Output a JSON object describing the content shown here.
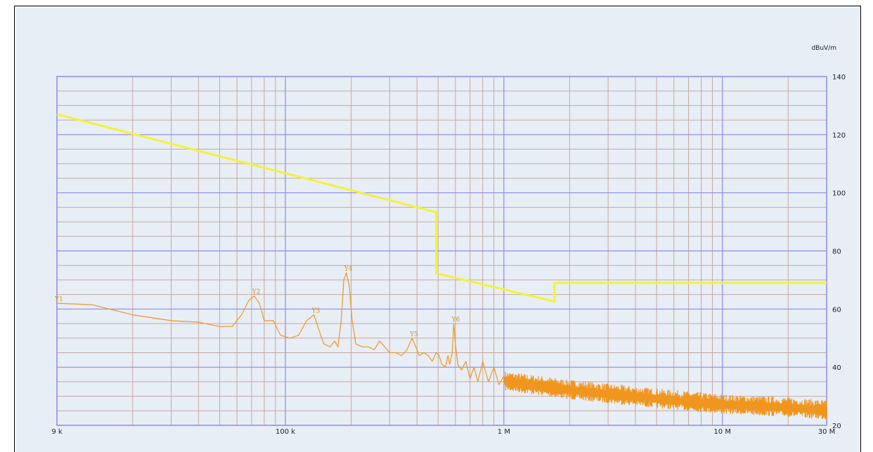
{
  "chart_data": {
    "type": "line",
    "title": "",
    "xlabel": "",
    "ylabel": "dBuV/m",
    "x_scale": "log",
    "xlim": [
      9000,
      30000000
    ],
    "ylim": [
      20,
      140
    ],
    "grid": true,
    "legend": "none",
    "x_ticks": [
      {
        "value": 9000,
        "label": "9 k"
      },
      {
        "value": 100000,
        "label": "100 k"
      },
      {
        "value": 1000000,
        "label": "1 M"
      },
      {
        "value": 10000000,
        "label": "10 M"
      },
      {
        "value": 30000000,
        "label": "30 M"
      }
    ],
    "y_ticks": [
      20,
      40,
      60,
      80,
      100,
      120,
      140
    ],
    "colors": {
      "background": "#e8eef6",
      "major_grid": "#8a8ae8",
      "minor_grid": "#c4a8a0",
      "limit_line": "#f2f23a",
      "measurement": "#f0961e",
      "marker": "#d88a1a"
    },
    "series": [
      {
        "role": "limit",
        "color": "#f2f23a",
        "points": [
          [
            9000,
            127
          ],
          [
            490000,
            93.3
          ],
          [
            490000,
            72.3
          ],
          [
            1705000,
            62.6
          ],
          [
            1705000,
            69
          ],
          [
            30000000,
            69
          ]
        ]
      },
      {
        "role": "measurement",
        "color": "#f0961e",
        "points": [
          [
            9000,
            62
          ],
          [
            13000,
            61.5
          ],
          [
            20000,
            58
          ],
          [
            30000,
            56
          ],
          [
            40000,
            55.5
          ],
          [
            50000,
            54
          ],
          [
            57000,
            54
          ],
          [
            63000,
            58
          ],
          [
            68000,
            63
          ],
          [
            72000,
            64.5
          ],
          [
            76000,
            62
          ],
          [
            80000,
            56
          ],
          [
            88000,
            56
          ],
          [
            95000,
            51
          ],
          [
            105000,
            50
          ],
          [
            115000,
            51
          ],
          [
            125000,
            56
          ],
          [
            135000,
            58
          ],
          [
            142000,
            53
          ],
          [
            150000,
            48
          ],
          [
            160000,
            47
          ],
          [
            168000,
            49
          ],
          [
            174000,
            47
          ],
          [
            180000,
            56
          ],
          [
            185000,
            70
          ],
          [
            190000,
            72.5
          ],
          [
            196000,
            68
          ],
          [
            202000,
            56
          ],
          [
            210000,
            48
          ],
          [
            225000,
            47
          ],
          [
            240000,
            47
          ],
          [
            255000,
            46
          ],
          [
            270000,
            49
          ],
          [
            285000,
            47
          ],
          [
            300000,
            45
          ],
          [
            320000,
            45
          ],
          [
            340000,
            44
          ],
          [
            360000,
            46
          ],
          [
            380000,
            50
          ],
          [
            395000,
            47
          ],
          [
            410000,
            44
          ],
          [
            430000,
            45
          ],
          [
            450000,
            44
          ],
          [
            470000,
            42
          ],
          [
            490000,
            45
          ],
          [
            505000,
            44
          ],
          [
            520000,
            41
          ],
          [
            540000,
            40
          ],
          [
            555000,
            44
          ],
          [
            565000,
            41
          ],
          [
            580000,
            45
          ],
          [
            590000,
            55
          ],
          [
            600000,
            48
          ],
          [
            615000,
            41
          ],
          [
            640000,
            39
          ],
          [
            670000,
            42
          ],
          [
            700000,
            36
          ],
          [
            730000,
            40
          ],
          [
            760000,
            35
          ],
          [
            800000,
            42
          ],
          [
            850000,
            35
          ],
          [
            900000,
            40
          ],
          [
            950000,
            34
          ],
          [
            1000000,
            37
          ]
        ],
        "noise_trend": [
          [
            1000000,
            35
          ],
          [
            2000000,
            32
          ],
          [
            5000000,
            29
          ],
          [
            10000000,
            27
          ],
          [
            20000000,
            26
          ],
          [
            30000000,
            25
          ]
        ]
      }
    ],
    "markers": [
      {
        "label": "1",
        "x": 9000,
        "y": 62
      },
      {
        "label": "2",
        "x": 72000,
        "y": 64.5
      },
      {
        "label": "3",
        "x": 135000,
        "y": 58
      },
      {
        "label": "4",
        "x": 190000,
        "y": 72.5
      },
      {
        "label": "5",
        "x": 380000,
        "y": 50
      },
      {
        "label": "6",
        "x": 590000,
        "y": 55
      }
    ]
  }
}
